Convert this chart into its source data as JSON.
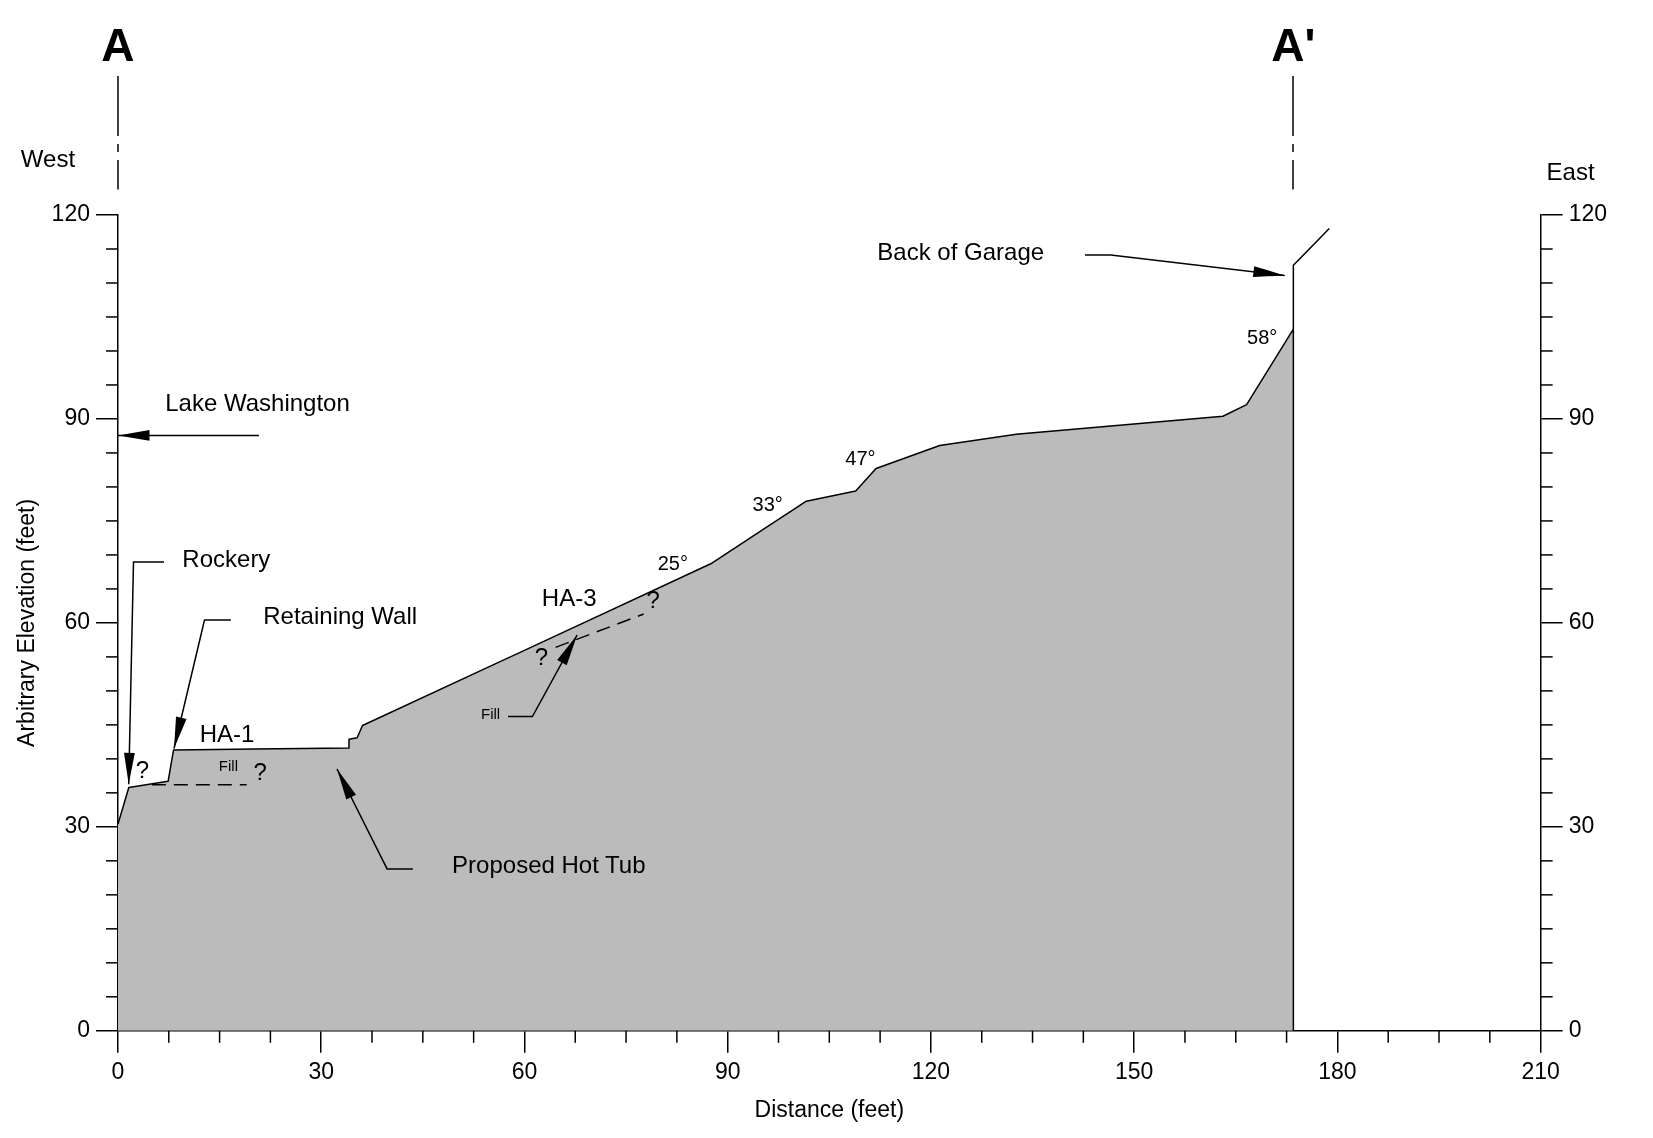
{
  "chart_data": {
    "type": "area",
    "xlabel": "Distance (feet)",
    "ylabel": "Arbitrary Elevation (feet)",
    "xlim": [
      0,
      210
    ],
    "xticks": [
      0,
      {
        "value": 7.5,
        "label": null
      },
      {
        "value": 15,
        "label": null
      },
      {
        "value": 22.5,
        "label": null
      },
      30,
      {
        "value": 37.5,
        "label": null
      },
      {
        "value": 45,
        "label": null
      },
      {
        "value": 52.5,
        "label": null
      },
      60,
      {
        "value": 67.5,
        "label": null
      },
      {
        "value": 75,
        "label": null
      },
      {
        "value": 82.5,
        "label": null
      },
      90,
      {
        "value": 97.5,
        "label": null
      },
      {
        "value": 105,
        "label": null
      },
      {
        "value": 112.5,
        "label": null
      },
      120,
      {
        "value": 127.5,
        "label": null
      },
      {
        "value": 135,
        "label": null
      },
      {
        "value": 142.5,
        "label": null
      },
      150,
      {
        "value": 157.5,
        "label": null
      },
      {
        "value": 165,
        "label": null
      },
      {
        "value": 172.5,
        "label": null
      },
      180,
      {
        "value": 187.5,
        "label": null
      },
      {
        "value": 195,
        "label": null
      },
      {
        "value": 202.5,
        "label": null
      },
      210
    ],
    "ylim": [
      0,
      120
    ],
    "yticks": [
      0,
      {
        "value": 5,
        "label": null
      },
      {
        "value": 10,
        "label": null
      },
      {
        "value": 15,
        "label": null
      },
      {
        "value": 20,
        "label": null
      },
      {
        "value": 25,
        "label": null
      },
      30,
      {
        "value": 35,
        "label": null
      },
      {
        "value": 40,
        "label": null
      },
      {
        "value": 45,
        "label": null
      },
      {
        "value": 50,
        "label": null
      },
      {
        "value": 55,
        "label": null
      },
      60,
      {
        "value": 65,
        "label": null
      },
      {
        "value": 70,
        "label": null
      },
      {
        "value": 75,
        "label": null
      },
      {
        "value": 80,
        "label": null
      },
      {
        "value": 85,
        "label": null
      },
      90,
      {
        "value": 95,
        "label": null
      },
      {
        "value": 100,
        "label": null
      },
      {
        "value": 105,
        "label": null
      },
      {
        "value": 110,
        "label": null
      },
      {
        "value": 115,
        "label": null
      },
      120
    ],
    "y2lim": [
      0,
      120
    ],
    "y2ticks": [
      0,
      {
        "value": 5,
        "label": null
      },
      {
        "value": 10,
        "label": null
      },
      {
        "value": 15,
        "label": null
      },
      {
        "value": 20,
        "label": null
      },
      {
        "value": 25,
        "label": null
      },
      30,
      {
        "value": 35,
        "label": null
      },
      {
        "value": 40,
        "label": null
      },
      {
        "value": 45,
        "label": null
      },
      {
        "value": 50,
        "label": null
      },
      {
        "value": 55,
        "label": null
      },
      60,
      {
        "value": 65,
        "label": null
      },
      {
        "value": 70,
        "label": null
      },
      {
        "value": 75,
        "label": null
      },
      {
        "value": 80,
        "label": null
      },
      {
        "value": 85,
        "label": null
      },
      90,
      {
        "value": 95,
        "label": null
      },
      {
        "value": 100,
        "label": null
      },
      {
        "value": 105,
        "label": null
      },
      {
        "value": 110,
        "label": null
      },
      {
        "value": 115,
        "label": null
      },
      120
    ],
    "grid": false,
    "legend": false,
    "series": [
      {
        "color": "#bbbbbb",
        "x": [
          0,
          1.6,
          7.4,
          8.2,
          34.1,
          34.1,
          35.3,
          36.1,
          87.5,
          101.6,
          108.9,
          111.9,
          121.3,
          133,
          163.1,
          166.6,
          173.5,
          173.5
        ],
        "values": [
          30.4,
          35.8,
          36.7,
          41.3,
          41.6,
          42.9,
          43.1,
          44.9,
          68.7,
          77.9,
          79.4,
          82.7,
          86.1,
          87.8,
          90.4,
          92.1,
          103.2,
          0
        ]
      },
      {
        "type": "line",
        "color": "#000000",
        "x": [
          173.5,
          173.5,
          178.8
        ],
        "values": [
          103.2,
          112.6,
          118
        ]
      },
      {
        "type": "line",
        "color": "#000000",
        "line_style": "dashed",
        "x": [
          5,
          19
        ],
        "values": [
          36.2,
          36.2
        ]
      },
      {
        "type": "line",
        "color": "#000000",
        "line_style": "dashed",
        "x": [
          64.6,
          77.6
        ],
        "values": [
          56.4,
          61.3
        ]
      }
    ],
    "annotations": [
      "West",
      "East",
      "Lake Washington",
      {
        "text": "Rockery",
        "x": 1.6,
        "y": 36.3
      },
      "Retaining Wall",
      "HA-1",
      "Fill",
      "?",
      "?",
      "Proposed Hot Tub",
      "HA-3",
      {
        "text": "Fill",
        "x": 67.7,
        "y": 58.2
      },
      "?",
      "?",
      "25°",
      "33°",
      "47°",
      "58°",
      "Back of Garage",
      "A",
      "A'"
    ]
  }
}
